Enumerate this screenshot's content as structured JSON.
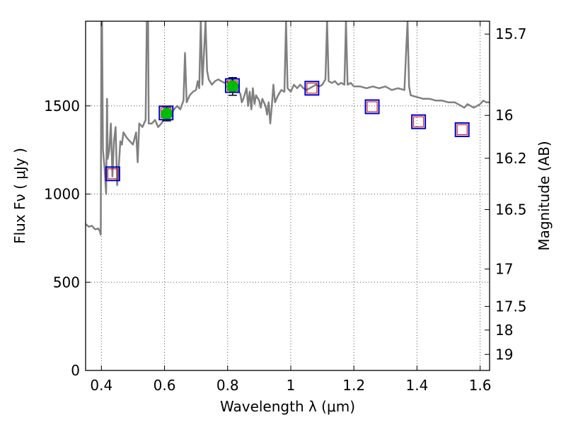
{
  "chart_data": {
    "type": "line",
    "xlabel": "Wavelength  λ (μm)",
    "ylabel": "Flux  Fν  ( μJy )",
    "y2label": "Magnitude (AB)",
    "xlim": [
      0.35,
      1.63
    ],
    "ylim": [
      0,
      1980
    ],
    "grid": true,
    "x_ticks": [
      {
        "value": 0.4,
        "label": "0.4"
      },
      {
        "value": 0.6,
        "label": "0.6"
      },
      {
        "value": 0.8,
        "label": "0.8"
      },
      {
        "value": 1.0,
        "label": "1"
      },
      {
        "value": 1.2,
        "label": "1.2"
      },
      {
        "value": 1.4,
        "label": "1.4"
      },
      {
        "value": 1.6,
        "label": "1.6"
      }
    ],
    "y_ticks": [
      {
        "value": 0,
        "label": "0"
      },
      {
        "value": 500,
        "label": "500"
      },
      {
        "value": 1000,
        "label": "1000"
      },
      {
        "value": 1500,
        "label": "1500"
      }
    ],
    "y2_ticks": [
      {
        "label": "15.7",
        "flux": 1907
      },
      {
        "label": "16",
        "flux": 1446
      },
      {
        "label": "16.2",
        "flux": 1203
      },
      {
        "label": "16.5",
        "flux": 912
      },
      {
        "label": "17",
        "flux": 575
      },
      {
        "label": "17.5",
        "flux": 363
      },
      {
        "label": "18",
        "flux": 229
      },
      {
        "label": "19",
        "flux": 91
      }
    ],
    "colors": {
      "spectrum": "#808080",
      "observed_marker": "#00bb00",
      "box_outline": "#0000cc",
      "model_marker": "#cc0000",
      "grid": "#555555"
    },
    "spectrum": {
      "name": "",
      "points": [
        [
          0.35,
          830
        ],
        [
          0.36,
          815
        ],
        [
          0.37,
          820
        ],
        [
          0.38,
          800
        ],
        [
          0.39,
          805
        ],
        [
          0.395,
          790
        ],
        [
          0.398,
          770
        ],
        [
          0.4,
          1970
        ],
        [
          0.402,
          1980
        ],
        [
          0.405,
          1250
        ],
        [
          0.41,
          1150
        ],
        [
          0.415,
          1000
        ],
        [
          0.418,
          1540
        ],
        [
          0.42,
          1200
        ],
        [
          0.425,
          1250
        ],
        [
          0.43,
          1400
        ],
        [
          0.435,
          1100
        ],
        [
          0.44,
          1300
        ],
        [
          0.445,
          1380
        ],
        [
          0.45,
          1050
        ],
        [
          0.455,
          1150
        ],
        [
          0.46,
          1300
        ],
        [
          0.465,
          1280
        ],
        [
          0.47,
          1350
        ],
        [
          0.48,
          1320
        ],
        [
          0.49,
          1300
        ],
        [
          0.5,
          1280
        ],
        [
          0.51,
          1350
        ],
        [
          0.515,
          1180
        ],
        [
          0.52,
          1400
        ],
        [
          0.53,
          1380
        ],
        [
          0.54,
          1420
        ],
        [
          0.544,
          1980
        ],
        [
          0.548,
          1980
        ],
        [
          0.55,
          1400
        ],
        [
          0.56,
          1400
        ],
        [
          0.57,
          1420
        ],
        [
          0.58,
          1380
        ],
        [
          0.59,
          1400
        ],
        [
          0.6,
          1430
        ],
        [
          0.61,
          1440
        ],
        [
          0.62,
          1450
        ],
        [
          0.63,
          1480
        ],
        [
          0.64,
          1500
        ],
        [
          0.65,
          1480
        ],
        [
          0.66,
          1530
        ],
        [
          0.665,
          1800
        ],
        [
          0.67,
          1520
        ],
        [
          0.68,
          1560
        ],
        [
          0.69,
          1580
        ],
        [
          0.7,
          1590
        ],
        [
          0.705,
          1640
        ],
        [
          0.71,
          1600
        ],
        [
          0.715,
          1980
        ],
        [
          0.72,
          1620
        ],
        [
          0.73,
          1980
        ],
        [
          0.735,
          1700
        ],
        [
          0.74,
          1650
        ],
        [
          0.75,
          1620
        ],
        [
          0.76,
          1640
        ],
        [
          0.77,
          1650
        ],
        [
          0.78,
          1640
        ],
        [
          0.79,
          1630
        ],
        [
          0.8,
          1640
        ],
        [
          0.81,
          1610
        ],
        [
          0.815,
          1660
        ],
        [
          0.82,
          1600
        ],
        [
          0.83,
          1590
        ],
        [
          0.84,
          1570
        ],
        [
          0.845,
          1520
        ],
        [
          0.85,
          1540
        ],
        [
          0.86,
          1600
        ],
        [
          0.865,
          1500
        ],
        [
          0.87,
          1580
        ],
        [
          0.875,
          1480
        ],
        [
          0.88,
          1600
        ],
        [
          0.885,
          1510
        ],
        [
          0.89,
          1560
        ],
        [
          0.9,
          1530
        ],
        [
          0.905,
          1490
        ],
        [
          0.91,
          1540
        ],
        [
          0.92,
          1500
        ],
        [
          0.925,
          1450
        ],
        [
          0.93,
          1520
        ],
        [
          0.935,
          1400
        ],
        [
          0.94,
          1500
        ],
        [
          0.945,
          1620
        ],
        [
          0.95,
          1520
        ],
        [
          0.96,
          1560
        ],
        [
          0.97,
          1590
        ],
        [
          0.98,
          1580
        ],
        [
          0.985,
          1980
        ],
        [
          0.99,
          1600
        ],
        [
          1.0,
          1580
        ],
        [
          1.01,
          1620
        ],
        [
          1.02,
          1600
        ],
        [
          1.03,
          1620
        ],
        [
          1.04,
          1600
        ],
        [
          1.05,
          1590
        ],
        [
          1.06,
          1600
        ],
        [
          1.07,
          1610
        ],
        [
          1.08,
          1620
        ],
        [
          1.09,
          1610
        ],
        [
          1.1,
          1620
        ],
        [
          1.11,
          1650
        ],
        [
          1.115,
          1980
        ],
        [
          1.12,
          1640
        ],
        [
          1.13,
          1630
        ],
        [
          1.14,
          1640
        ],
        [
          1.15,
          1620
        ],
        [
          1.16,
          1630
        ],
        [
          1.17,
          1620
        ],
        [
          1.175,
          1980
        ],
        [
          1.18,
          1620
        ],
        [
          1.19,
          1630
        ],
        [
          1.2,
          1610
        ],
        [
          1.22,
          1610
        ],
        [
          1.24,
          1600
        ],
        [
          1.26,
          1610
        ],
        [
          1.28,
          1600
        ],
        [
          1.3,
          1610
        ],
        [
          1.32,
          1590
        ],
        [
          1.34,
          1600
        ],
        [
          1.36,
          1590
        ],
        [
          1.37,
          1980
        ],
        [
          1.375,
          1610
        ],
        [
          1.38,
          1560
        ],
        [
          1.4,
          1550
        ],
        [
          1.42,
          1540
        ],
        [
          1.44,
          1540
        ],
        [
          1.46,
          1530
        ],
        [
          1.48,
          1530
        ],
        [
          1.5,
          1520
        ],
        [
          1.52,
          1520
        ],
        [
          1.54,
          1500
        ],
        [
          1.55,
          1490
        ],
        [
          1.56,
          1510
        ],
        [
          1.57,
          1500
        ],
        [
          1.58,
          1490
        ],
        [
          1.59,
          1500
        ],
        [
          1.6,
          1510
        ],
        [
          1.61,
          1530
        ],
        [
          1.62,
          1520
        ],
        [
          1.63,
          1520
        ]
      ]
    },
    "observed_points": [
      {
        "x": 0.607,
        "y": 1455,
        "err": 40
      },
      {
        "x": 0.816,
        "y": 1610,
        "err": 50
      }
    ],
    "model_points": [
      {
        "x": 0.436,
        "y": 1115
      },
      {
        "x": 0.605,
        "y": 1460
      },
      {
        "x": 0.815,
        "y": 1615
      },
      {
        "x": 1.067,
        "y": 1600
      },
      {
        "x": 1.258,
        "y": 1495
      },
      {
        "x": 1.405,
        "y": 1410
      },
      {
        "x": 1.543,
        "y": 1365
      }
    ]
  }
}
